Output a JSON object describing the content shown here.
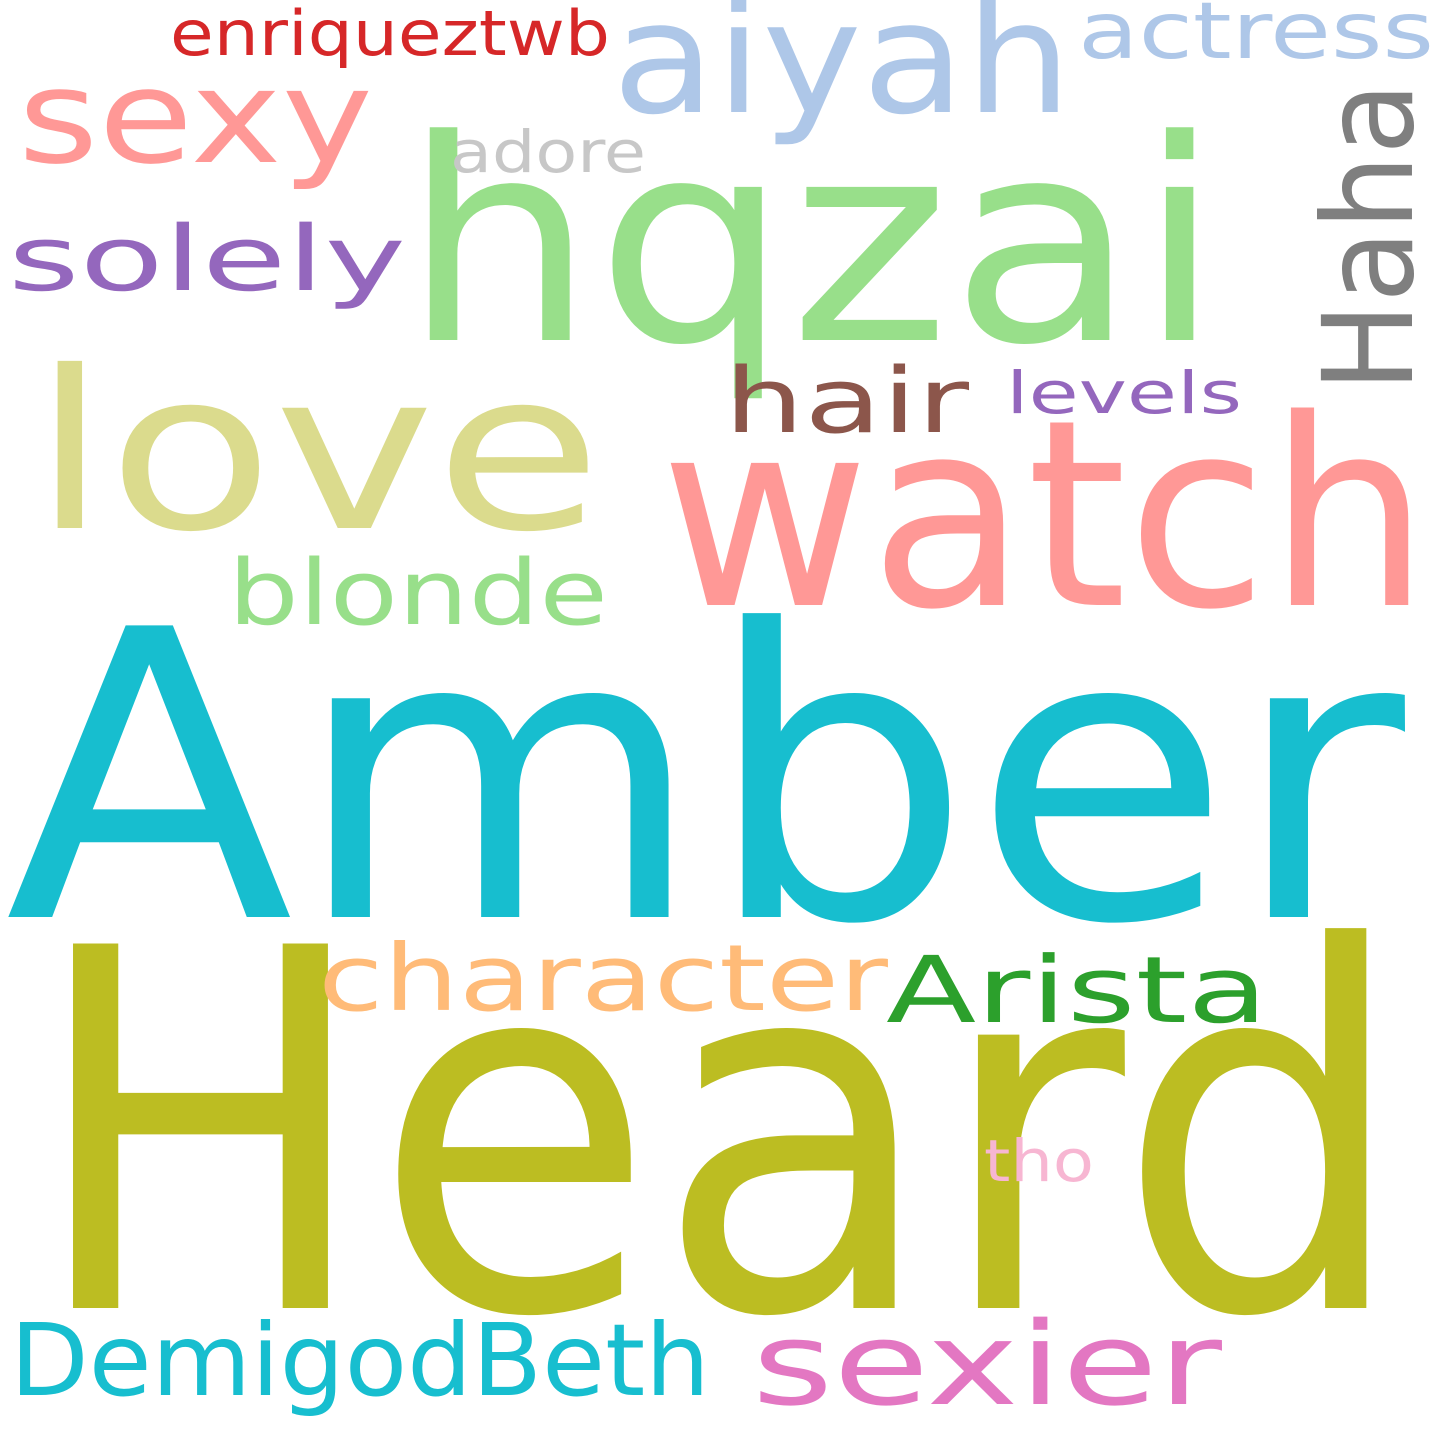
{
  "words": [
    {
      "key": "amber",
      "text": "Amber",
      "color": "#17becf"
    },
    {
      "key": "heard",
      "text": "Heard",
      "color": "#bcbd22"
    },
    {
      "key": "watch",
      "text": "watch",
      "color": "#ff9896"
    },
    {
      "key": "hqzai",
      "text": "hqzai",
      "color": "#98df8a"
    },
    {
      "key": "love",
      "text": "love",
      "color": "#dbdb8d"
    },
    {
      "key": "aiyah",
      "text": "aiyah",
      "color": "#aec7e8"
    },
    {
      "key": "sexy",
      "text": "sexy",
      "color": "#ff9896"
    },
    {
      "key": "haha",
      "text": "Haha",
      "color": "#7f7f7f"
    },
    {
      "key": "sexier",
      "text": "sexier",
      "color": "#e377c2"
    },
    {
      "key": "demigodbeth",
      "text": "DemigodBeth",
      "color": "#17becf"
    },
    {
      "key": "character",
      "text": "character",
      "color": "#ffbb78"
    },
    {
      "key": "arista",
      "text": "Arista",
      "color": "#2ca02c"
    },
    {
      "key": "blonde",
      "text": "blonde",
      "color": "#98df8a"
    },
    {
      "key": "solely",
      "text": "solely",
      "color": "#9467bd"
    },
    {
      "key": "hair",
      "text": "hair",
      "color": "#8c564b"
    },
    {
      "key": "actress",
      "text": "actress",
      "color": "#aec7e8"
    },
    {
      "key": "enriqueztwb",
      "text": "enriqueztwb",
      "color": "#d62728"
    },
    {
      "key": "adore",
      "text": "adore",
      "color": "#c7c7c7"
    },
    {
      "key": "levels",
      "text": "levels",
      "color": "#9467bd"
    },
    {
      "key": "tho",
      "text": "tho",
      "color": "#f7b6d2"
    }
  ]
}
